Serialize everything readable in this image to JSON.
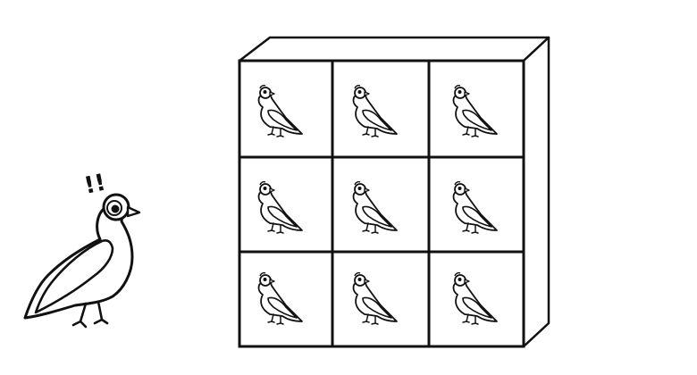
{
  "diagram": {
    "description_labels": [],
    "observer": {
      "icon": "pigeon-icon",
      "exclamation": "!!"
    },
    "box": {
      "rows": 3,
      "cols": 3,
      "hole_icon": "pigeon-icon"
    },
    "colors": {
      "stroke": "#111111",
      "background": "#ffffff"
    }
  }
}
